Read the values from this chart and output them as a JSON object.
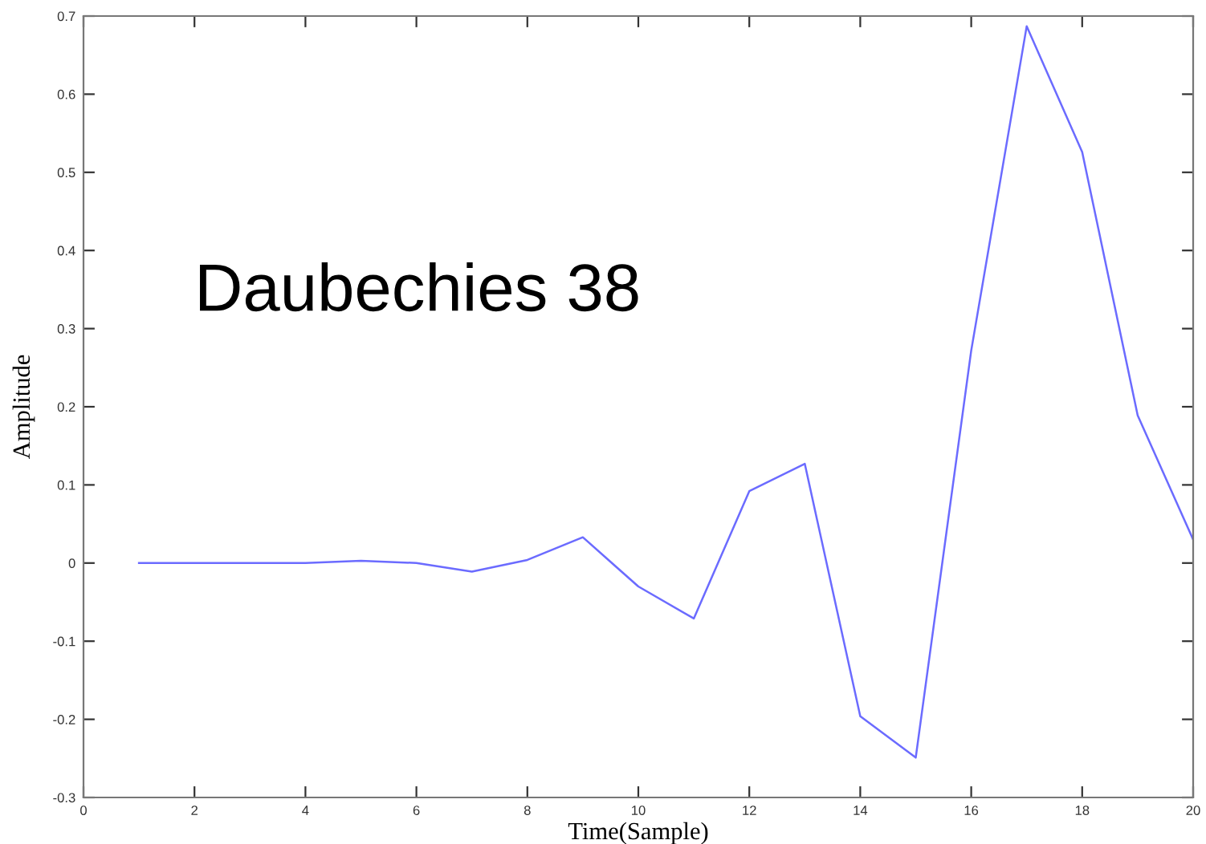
{
  "chart_data": {
    "type": "line",
    "xlabel": "Time(Sample)",
    "ylabel": "Amplitude",
    "annotations": [
      "Daubechies 38"
    ],
    "x": [
      1,
      2,
      3,
      4,
      5,
      6,
      7,
      8,
      9,
      10,
      11,
      12,
      13,
      14,
      15,
      16,
      17,
      18,
      19,
      20
    ],
    "series": [
      {
        "color": "#6b6bff",
        "values": [
          0,
          0,
          0,
          0,
          0.003,
          0,
          -0.011,
          0.004,
          0.033,
          -0.03,
          -0.071,
          0.092,
          0.127,
          -0.196,
          -0.249,
          0.272,
          0.687,
          0.526,
          0.189,
          0.03
        ]
      }
    ],
    "xlim": [
      0,
      20
    ],
    "xticks": [
      0,
      2,
      4,
      6,
      8,
      10,
      12,
      14,
      16,
      18,
      20
    ],
    "ylim": [
      -0.3,
      0.7
    ],
    "yticks": [
      -0.3,
      -0.2,
      -0.1,
      0,
      0.1,
      0.2,
      0.3,
      0.4,
      0.5,
      0.6,
      0.7
    ],
    "grid": false,
    "legend": false,
    "marker": "none",
    "line_style": "solid"
  }
}
